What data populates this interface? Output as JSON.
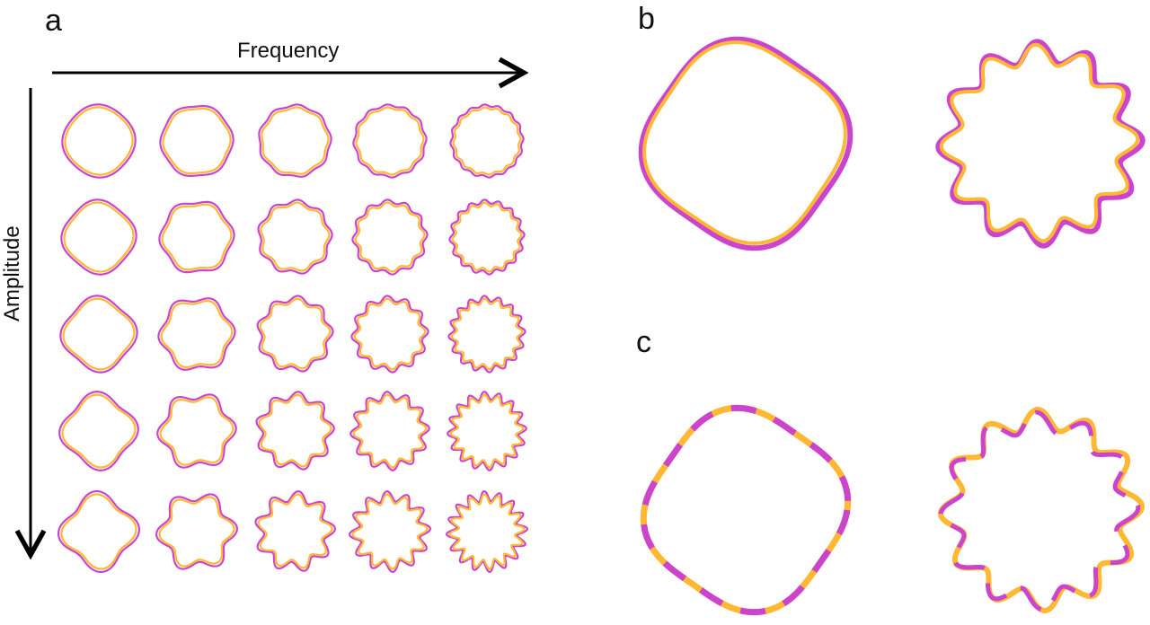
{
  "panels": {
    "a": "a",
    "b": "b",
    "c": "c"
  },
  "axes": {
    "x_label": "Frequency",
    "y_label": "Amplitude"
  },
  "colors": {
    "outer": "#cc44cc",
    "inner": "#ffb833",
    "axis": "#000000"
  },
  "grid": {
    "frequencies": [
      4,
      6,
      9,
      12,
      16
    ],
    "amplitudes": [
      0.03,
      0.055,
      0.08,
      0.11,
      0.14
    ]
  },
  "panel_b": [
    {
      "frequency": 4,
      "amplitude": 0.06
    },
    {
      "frequency": 12,
      "amplitude": 0.11
    }
  ],
  "panel_c": [
    {
      "frequency": 4,
      "amplitude": 0.06,
      "dashed": true
    },
    {
      "frequency": 12,
      "amplitude": 0.11,
      "dashed": true
    }
  ]
}
